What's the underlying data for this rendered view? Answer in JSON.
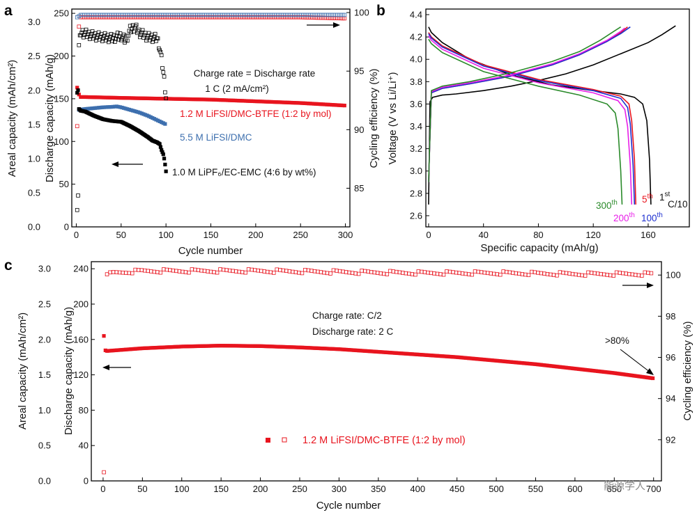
{
  "watermark": "能源学人",
  "chart_data": [
    {
      "panel": "a",
      "type": "scatter",
      "xlabel": "Cycle number",
      "ylabel_left_outer": "Areal capacity (mAh/cm²)",
      "ylabel_left": "Discharge capacity (mAh/g)",
      "ylabel_right": "Cycling efficiency (%)",
      "xlim": [
        -5,
        305
      ],
      "ylim": [
        0,
        255
      ],
      "ylim_areal": [
        0,
        3.19
      ],
      "ylim_right": [
        81.7,
        100.3
      ],
      "xticks": [
        "0",
        "50",
        "100",
        "150",
        "200",
        "250",
        "300"
      ],
      "yticks": [
        "0",
        "50",
        "100",
        "150",
        "200",
        "250"
      ],
      "yticks_areal": [
        "0.0",
        "0.5",
        "1.0",
        "1.5",
        "2.0",
        "2.5",
        "3.0"
      ],
      "yticks_right": [
        "85",
        "90",
        "95",
        "100"
      ],
      "annotations": [
        "Charge rate = Discharge rate",
        "1 C (2 mA/cm²)"
      ],
      "series": [
        {
          "name": "1.2 M LiFSI/DMC-BTFE (1:2 by mol)",
          "color": "#e8141e",
          "axis": "capacity",
          "x": [
            1,
            2,
            3,
            5,
            10,
            50,
            100,
            150,
            200,
            250,
            300
          ],
          "values": [
            163,
            158,
            155,
            152,
            152,
            151,
            150,
            149,
            147,
            145,
            142
          ]
        },
        {
          "name": "5.5 M LiFSI/DMC",
          "color": "#3d6fae",
          "axis": "capacity",
          "x": [
            3,
            10,
            20,
            30,
            40,
            45,
            50,
            60,
            70,
            80,
            90,
            100
          ],
          "values": [
            137,
            138,
            139,
            140,
            140.5,
            141,
            140,
            137,
            134,
            130,
            125,
            120
          ]
        },
        {
          "name": "1.0 M LiPF₆/EC-EMC (4:6 by wt%)",
          "color": "#000000",
          "axis": "capacity",
          "x": [
            1,
            2,
            3,
            5,
            10,
            20,
            30,
            40,
            50,
            60,
            70,
            80,
            85,
            90,
            93,
            95,
            97,
            98,
            99,
            100
          ],
          "values": [
            157,
            160,
            138,
            136,
            135,
            130,
            126,
            124,
            123,
            118,
            112,
            105,
            101,
            99,
            97,
            90,
            85,
            80,
            73,
            65
          ]
        },
        {
          "name": "CE 1.2 M LiFSI/DMC-BTFE",
          "color": "#e8141e",
          "axis": "efficiency",
          "x": [
            1,
            2,
            3,
            5,
            10,
            50,
            100,
            150,
            200,
            250,
            300
          ],
          "values": [
            90.3,
            90.8,
            98.8,
            99.6,
            99.6,
            99.6,
            99.6,
            99.6,
            99.6,
            99.6,
            99.5
          ]
        },
        {
          "name": "CE 5.5 M LiFSI/DMC",
          "color": "#3d6fae",
          "axis": "efficiency",
          "x": [
            1,
            3,
            5,
            10,
            50,
            100,
            150,
            200,
            250,
            300
          ],
          "values": [
            99.6,
            99.7,
            99.8,
            99.8,
            99.8,
            99.8,
            99.8,
            99.8,
            99.8,
            99.8
          ]
        },
        {
          "name": "CE 1.0 M LiPF₆/EC-EMC",
          "color": "#000000",
          "axis": "efficiency",
          "x": [
            1,
            2,
            3,
            5,
            10,
            20,
            30,
            40,
            50,
            55,
            60,
            65,
            70,
            80,
            90,
            92,
            94,
            96,
            98,
            100
          ],
          "values": [
            83.5,
            84.5,
            97.1,
            98.3,
            98.2,
            98.0,
            97.9,
            97.8,
            98.0,
            97.6,
            98.5,
            98.8,
            98.3,
            97.9,
            97.8,
            97.3,
            96.5,
            95.5,
            94.3,
            92.8
          ]
        }
      ]
    },
    {
      "panel": "b",
      "type": "line",
      "xlabel": "Specific capacity (mAh/g)",
      "ylabel": "Voltage (V vs Li/Li⁺)",
      "xlim": [
        -2,
        190
      ],
      "ylim": [
        2.5,
        4.45
      ],
      "xticks": [
        "0",
        "40",
        "80",
        "120",
        "160"
      ],
      "yticks": [
        "2.6",
        "2.8",
        "3.0",
        "3.2",
        "3.4",
        "3.6",
        "3.8",
        "4.0",
        "4.2",
        "4.4"
      ],
      "series": [
        {
          "name": "1st C/10",
          "color": "#000000",
          "charge": {
            "x": [
              0,
              1,
              3,
              10,
              20,
              40,
              60,
              80,
              100,
              120,
              140,
              160,
              170,
              180
            ],
            "values": [
              2.7,
              3.62,
              3.66,
              3.68,
              3.69,
              3.72,
              3.76,
              3.81,
              3.87,
              3.95,
              4.05,
              4.15,
              4.22,
              4.3
            ]
          },
          "discharge": {
            "x": [
              0,
              2,
              10,
              30,
              60,
              90,
              120,
              140,
              150,
              156,
              159,
              161,
              162
            ],
            "values": [
              4.29,
              4.24,
              4.15,
              4.0,
              3.86,
              3.77,
              3.72,
              3.69,
              3.66,
              3.6,
              3.45,
              3.1,
              2.7
            ]
          }
        },
        {
          "name": "5th",
          "color": "#e8141e",
          "charge": {
            "x": [
              0,
              2,
              10,
              30,
              60,
              90,
              110,
              130,
              140,
              145
            ],
            "values": [
              2.9,
              3.7,
              3.74,
              3.78,
              3.85,
              3.95,
              4.04,
              4.16,
              4.24,
              4.29
            ]
          },
          "discharge": {
            "x": [
              0,
              2,
              10,
              40,
              80,
              120,
              140,
              146,
              148,
              150,
              151
            ],
            "values": [
              4.24,
              4.2,
              4.12,
              3.95,
              3.82,
              3.73,
              3.67,
              3.6,
              3.45,
              3.1,
              2.7
            ]
          }
        },
        {
          "name": "100th",
          "color": "#1d2fd0",
          "charge": {
            "x": [
              0,
              2,
              10,
              30,
              60,
              90,
              110,
              130,
              140,
              147
            ],
            "values": [
              2.9,
              3.7,
              3.74,
              3.78,
              3.85,
              3.95,
              4.04,
              4.16,
              4.23,
              4.29
            ]
          },
          "discharge": {
            "x": [
              0,
              2,
              10,
              40,
              80,
              120,
              140,
              145,
              147,
              149,
              150
            ],
            "values": [
              4.23,
              4.19,
              4.11,
              3.94,
              3.81,
              3.72,
              3.65,
              3.57,
              3.42,
              3.05,
              2.7
            ]
          }
        },
        {
          "name": "200th",
          "color": "#e81ee8",
          "charge": {
            "x": [
              0,
              2,
              10,
              30,
              60,
              90,
              110,
              130,
              140,
              143
            ],
            "values": [
              2.9,
              3.71,
              3.75,
              3.79,
              3.86,
              3.96,
              4.05,
              4.17,
              4.25,
              4.28
            ]
          },
          "discharge": {
            "x": [
              0,
              2,
              10,
              40,
              80,
              120,
              138,
              143,
              145,
              147,
              148
            ],
            "values": [
              4.21,
              4.17,
              4.09,
              3.92,
              3.79,
              3.7,
              3.63,
              3.55,
              3.4,
              3.05,
              2.7
            ]
          }
        },
        {
          "name": "300th",
          "color": "#2a8a2a",
          "charge": {
            "x": [
              0,
              2,
              10,
              30,
              60,
              90,
              110,
              125,
              135,
              140
            ],
            "values": [
              2.9,
              3.72,
              3.76,
              3.8,
              3.88,
              3.98,
              4.07,
              4.17,
              4.25,
              4.29
            ]
          },
          "discharge": {
            "x": [
              0,
              2,
              10,
              40,
              80,
              110,
              130,
              136,
              138,
              140,
              141
            ],
            "values": [
              4.18,
              4.14,
              4.06,
              3.89,
              3.76,
              3.68,
              3.6,
              3.52,
              3.38,
              3.0,
              2.7
            ]
          }
        }
      ],
      "labels": {
        "c1": "1",
        "c1_sup": "st",
        "c1_rate": "C/10",
        "c5": "5",
        "c5_sup": "th",
        "c100": "100",
        "c100_sup": "th",
        "c200": "200",
        "c200_sup": "th",
        "c300": "300",
        "c300_sup": "th"
      }
    },
    {
      "panel": "c",
      "type": "scatter",
      "xlabel": "Cycle number",
      "ylabel_left_outer": "Areal capacity (mAh/cm²)",
      "ylabel_left": "Discharge capacity (mAh/g)",
      "ylabel_right": "Cycling efficiency (%)",
      "xlim": [
        -15,
        710
      ],
      "ylim": [
        0,
        248
      ],
      "ylim_areal": [
        0,
        3.1
      ],
      "ylim_right": [
        90,
        100.65
      ],
      "xticks": [
        "0",
        "50",
        "100",
        "150",
        "200",
        "250",
        "300",
        "350",
        "400",
        "450",
        "500",
        "550",
        "600",
        "650",
        "700"
      ],
      "yticks": [
        "0",
        "40",
        "80",
        "120",
        "160",
        "200",
        "240"
      ],
      "yticks_areal": [
        "0.0",
        "0.5",
        "1.0",
        "1.5",
        "2.0",
        "2.5",
        "3.0"
      ],
      "yticks_right": [
        "92",
        "94",
        "96",
        "98",
        "100"
      ],
      "annotations": [
        "Charge rate: C/2",
        "Discharge rate: 2 C",
        ">80%"
      ],
      "legend": "1.2 M LiFSI/DMC-BTFE (1:2 by mol)",
      "series": [
        {
          "name": "1.2 M LiFSI/DMC-BTFE (1:2 by mol)",
          "color": "#e8141e",
          "axis": "capacity",
          "x": [
            1,
            2,
            5,
            50,
            100,
            150,
            200,
            250,
            300,
            350,
            400,
            450,
            500,
            550,
            600,
            650,
            700
          ],
          "values": [
            164,
            148,
            147,
            150,
            152,
            153,
            152.5,
            151,
            149,
            146,
            143,
            140,
            136,
            132,
            127,
            122,
            116
          ]
        },
        {
          "name": "CE",
          "color": "#e8141e",
          "axis": "efficiency",
          "x": [
            1,
            2,
            3,
            10,
            50,
            100,
            200,
            300,
            400,
            500,
            600,
            700
          ],
          "values": [
            90.5,
            99.7,
            99.9,
            100.1,
            100.2,
            100.2,
            100.2,
            100.15,
            100.1,
            100.1,
            100.05,
            100.05
          ]
        }
      ]
    }
  ]
}
